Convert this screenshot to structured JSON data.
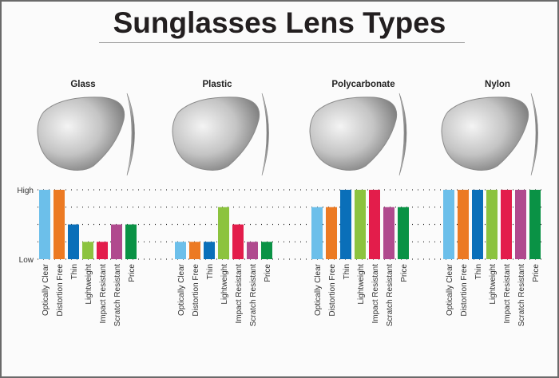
{
  "title": "Sunglasses Lens Types",
  "chart_data": {
    "type": "bar",
    "title": "Sunglasses Lens Types",
    "ylim": [
      0,
      4
    ],
    "y_tick_labels": {
      "low": "Low",
      "high": "High"
    },
    "grid": true,
    "categories": [
      "Optically Clear",
      "Distortion Free",
      "Thin",
      "Lightweight",
      "Impact Resistant",
      "Scratch Resistant",
      "Price"
    ],
    "colors": [
      "#6cbfea",
      "#ec7a23",
      "#0a6fb9",
      "#8cc33f",
      "#e31d4b",
      "#b04a8e",
      "#0a9245"
    ],
    "groups": [
      {
        "name": "Glass",
        "values": [
          4,
          4,
          2,
          1,
          1,
          2,
          2
        ]
      },
      {
        "name": "Plastic",
        "values": [
          1,
          1,
          1,
          3,
          2,
          1,
          1
        ]
      },
      {
        "name": "Polycarbonate",
        "values": [
          3,
          3,
          4,
          4,
          4,
          3,
          3
        ]
      },
      {
        "name": "Nylon",
        "values": [
          4,
          4,
          4,
          4,
          4,
          4,
          4
        ]
      }
    ]
  }
}
